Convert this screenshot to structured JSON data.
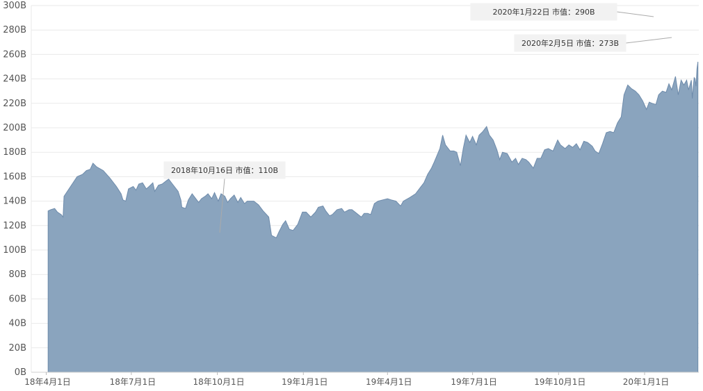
{
  "chart_data": {
    "type": "area",
    "title": "",
    "xlabel": "",
    "ylabel": "",
    "ylim": [
      0,
      300
    ],
    "yticks": [
      "0B",
      "20B",
      "40B",
      "60B",
      "80B",
      "100B",
      "120B",
      "140B",
      "160B",
      "180B",
      "200B",
      "220B",
      "240B",
      "260B",
      "280B",
      "300B"
    ],
    "xlim": [
      "2018-03-16",
      "2020-02-28"
    ],
    "xticks": [
      {
        "date": "2018-04-01",
        "label": "18年4月1日"
      },
      {
        "date": "2018-07-01",
        "label": "18年7月1日"
      },
      {
        "date": "2018-10-01",
        "label": "18年10月1日"
      },
      {
        "date": "2019-01-01",
        "label": "19年1月1日"
      },
      {
        "date": "2019-04-01",
        "label": "19年4月1日"
      },
      {
        "date": "2019-07-01",
        "label": "19年7月1日"
      },
      {
        "date": "2019-10-01",
        "label": "19年10月1日"
      },
      {
        "date": "2020-01-01",
        "label": "20年1月1日"
      }
    ],
    "grid": true,
    "fill_color": "#8aa4be",
    "line_color": "#6e8bab",
    "points": [
      [
        "2018-04-03",
        132
      ],
      [
        "2018-04-06",
        133
      ],
      [
        "2018-04-10",
        134
      ],
      [
        "2018-04-13",
        131
      ],
      [
        "2018-04-17",
        129
      ],
      [
        "2018-04-19",
        127
      ],
      [
        "2018-04-20",
        144
      ],
      [
        "2018-04-27",
        152
      ],
      [
        "2018-05-04",
        160
      ],
      [
        "2018-05-10",
        162
      ],
      [
        "2018-05-14",
        165
      ],
      [
        "2018-05-18",
        166
      ],
      [
        "2018-05-21",
        171
      ],
      [
        "2018-05-25",
        168
      ],
      [
        "2018-06-01",
        165
      ],
      [
        "2018-06-08",
        159
      ],
      [
        "2018-06-15",
        152
      ],
      [
        "2018-06-20",
        146
      ],
      [
        "2018-06-22",
        141
      ],
      [
        "2018-06-25",
        140
      ],
      [
        "2018-06-28",
        150
      ],
      [
        "2018-07-03",
        152
      ],
      [
        "2018-07-06",
        149
      ],
      [
        "2018-07-09",
        154
      ],
      [
        "2018-07-13",
        155
      ],
      [
        "2018-07-17",
        150
      ],
      [
        "2018-07-20",
        152
      ],
      [
        "2018-07-24",
        155
      ],
      [
        "2018-07-26",
        148
      ],
      [
        "2018-07-30",
        153
      ],
      [
        "2018-08-03",
        154
      ],
      [
        "2018-08-08",
        157
      ],
      [
        "2018-08-10",
        158
      ],
      [
        "2018-08-14",
        154
      ],
      [
        "2018-08-20",
        148
      ],
      [
        "2018-08-23",
        141
      ],
      [
        "2018-08-24",
        135
      ],
      [
        "2018-08-28",
        134
      ],
      [
        "2018-08-31",
        141
      ],
      [
        "2018-09-04",
        146
      ],
      [
        "2018-09-07",
        143
      ],
      [
        "2018-09-11",
        139
      ],
      [
        "2018-09-14",
        142
      ],
      [
        "2018-09-18",
        144
      ],
      [
        "2018-09-21",
        146
      ],
      [
        "2018-09-25",
        142
      ],
      [
        "2018-09-28",
        147
      ],
      [
        "2018-10-02",
        140
      ],
      [
        "2018-10-05",
        146
      ],
      [
        "2018-10-09",
        144
      ],
      [
        "2018-10-12",
        139
      ],
      [
        "2018-10-15",
        142
      ],
      [
        "2018-10-19",
        145
      ],
      [
        "2018-10-23",
        139
      ],
      [
        "2018-10-26",
        143
      ],
      [
        "2018-10-30",
        138
      ],
      [
        "2018-11-02",
        140
      ],
      [
        "2018-11-09",
        140
      ],
      [
        "2018-11-14",
        137
      ],
      [
        "2018-11-19",
        132
      ],
      [
        "2018-11-25",
        127
      ],
      [
        "2018-11-28",
        112
      ],
      [
        "2018-12-03",
        110
      ],
      [
        "2018-12-06",
        115
      ],
      [
        "2018-12-10",
        121
      ],
      [
        "2018-12-13",
        124
      ],
      [
        "2018-12-17",
        117
      ],
      [
        "2018-12-21",
        116
      ],
      [
        "2018-12-26",
        121
      ],
      [
        "2018-12-31",
        131
      ],
      [
        "2019-01-04",
        131
      ],
      [
        "2019-01-09",
        127
      ],
      [
        "2019-01-14",
        131
      ],
      [
        "2019-01-17",
        135
      ],
      [
        "2019-01-22",
        136
      ],
      [
        "2019-01-25",
        132
      ],
      [
        "2019-01-29",
        128
      ],
      [
        "2019-02-01",
        129
      ],
      [
        "2019-02-06",
        133
      ],
      [
        "2019-02-11",
        134
      ],
      [
        "2019-02-14",
        131
      ],
      [
        "2019-02-19",
        133
      ],
      [
        "2019-02-22",
        133
      ],
      [
        "2019-02-27",
        130
      ],
      [
        "2019-03-04",
        127
      ],
      [
        "2019-03-07",
        130
      ],
      [
        "2019-03-11",
        130
      ],
      [
        "2019-03-14",
        129
      ],
      [
        "2019-03-18",
        138
      ],
      [
        "2019-03-22",
        140
      ],
      [
        "2019-03-27",
        141
      ],
      [
        "2019-04-01",
        142
      ],
      [
        "2019-04-05",
        141
      ],
      [
        "2019-04-10",
        140
      ],
      [
        "2019-04-15",
        136
      ],
      [
        "2019-04-18",
        140
      ],
      [
        "2019-04-25",
        143
      ],
      [
        "2019-05-01",
        146
      ],
      [
        "2019-05-06",
        151
      ],
      [
        "2019-05-10",
        155
      ],
      [
        "2019-05-14",
        162
      ],
      [
        "2019-05-18",
        167
      ],
      [
        "2019-05-21",
        172
      ],
      [
        "2019-05-27",
        183
      ],
      [
        "2019-05-30",
        194
      ],
      [
        "2019-06-02",
        186
      ],
      [
        "2019-06-07",
        181
      ],
      [
        "2019-06-11",
        181
      ],
      [
        "2019-06-14",
        180
      ],
      [
        "2019-06-18",
        169
      ],
      [
        "2019-06-21",
        183
      ],
      [
        "2019-06-24",
        194
      ],
      [
        "2019-06-28",
        188
      ],
      [
        "2019-07-01",
        193
      ],
      [
        "2019-07-05",
        186
      ],
      [
        "2019-07-08",
        194
      ],
      [
        "2019-07-12",
        197
      ],
      [
        "2019-07-16",
        201
      ],
      [
        "2019-07-19",
        194
      ],
      [
        "2019-07-23",
        190
      ],
      [
        "2019-07-27",
        182
      ],
      [
        "2019-07-30",
        174
      ],
      [
        "2019-08-02",
        180
      ],
      [
        "2019-08-07",
        179
      ],
      [
        "2019-08-12",
        172
      ],
      [
        "2019-08-16",
        175
      ],
      [
        "2019-08-19",
        170
      ],
      [
        "2019-08-23",
        175
      ],
      [
        "2019-08-27",
        174
      ],
      [
        "2019-08-30",
        172
      ],
      [
        "2019-09-04",
        167
      ],
      [
        "2019-09-08",
        175
      ],
      [
        "2019-09-12",
        175
      ],
      [
        "2019-09-16",
        182
      ],
      [
        "2019-09-20",
        183
      ],
      [
        "2019-09-25",
        181
      ],
      [
        "2019-09-30",
        190
      ],
      [
        "2019-10-03",
        186
      ],
      [
        "2019-10-08",
        183
      ],
      [
        "2019-10-12",
        186
      ],
      [
        "2019-10-16",
        184
      ],
      [
        "2019-10-20",
        187
      ],
      [
        "2019-10-24",
        182
      ],
      [
        "2019-10-28",
        189
      ],
      [
        "2019-11-01",
        188
      ],
      [
        "2019-11-06",
        185
      ],
      [
        "2019-11-09",
        181
      ],
      [
        "2019-11-13",
        179
      ],
      [
        "2019-11-17",
        187
      ],
      [
        "2019-11-21",
        196
      ],
      [
        "2019-11-25",
        197
      ],
      [
        "2019-11-29",
        196
      ],
      [
        "2019-12-03",
        204
      ],
      [
        "2019-12-07",
        209
      ],
      [
        "2019-12-10",
        227
      ],
      [
        "2019-12-14",
        235
      ],
      [
        "2019-12-18",
        232
      ],
      [
        "2019-12-22",
        230
      ],
      [
        "2019-12-26",
        227
      ],
      [
        "2019-12-30",
        222
      ],
      [
        "2020-01-03",
        215
      ],
      [
        "2020-01-06",
        221
      ],
      [
        "2020-01-09",
        220
      ],
      [
        "2020-01-13",
        219
      ],
      [
        "2020-01-16",
        227
      ],
      [
        "2020-01-20",
        230
      ],
      [
        "2020-01-24",
        229
      ],
      [
        "2020-01-27",
        236
      ],
      [
        "2020-01-30",
        231
      ],
      [
        "2020-02-03",
        242
      ],
      [
        "2020-02-06",
        227
      ],
      [
        "2020-02-09",
        239
      ],
      [
        "2020-02-12",
        235
      ],
      [
        "2020-02-15",
        239
      ],
      [
        "2020-02-17",
        231
      ],
      [
        "2020-02-20",
        239
      ],
      [
        "2020-02-21",
        224
      ],
      [
        "2020-02-22",
        233
      ],
      [
        "2020-02-23",
        241
      ],
      [
        "2020-02-24",
        240
      ],
      [
        "2020-02-25",
        234
      ],
      [
        "2020-02-26",
        248
      ],
      [
        "2020-02-27",
        254
      ]
    ],
    "annotations": [
      {
        "text": "2018年10月16日 市值：110B",
        "date": "2018-10-16",
        "value": 110
      },
      {
        "text": "2020年1月22日 市值：290B",
        "date": "2020-01-22",
        "value": 290
      },
      {
        "text": "2020年2月5日 市值：273B",
        "date": "2020-02-05",
        "value": 273
      }
    ]
  }
}
